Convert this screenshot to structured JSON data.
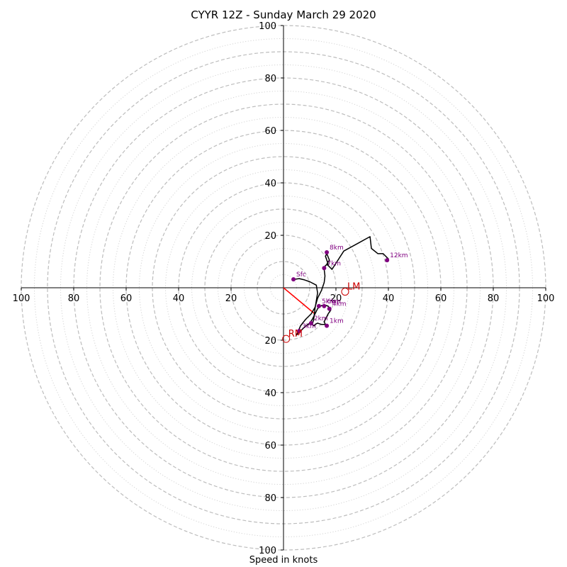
{
  "chart_data": {
    "type": "hodograph",
    "title": "CYYR 12Z - Sunday March 29 2020",
    "xlabel": "Speed in knots",
    "axis_range": [
      -100,
      100
    ],
    "rings_dashed": [
      10,
      20,
      30,
      40,
      50,
      60,
      70,
      80,
      90,
      100
    ],
    "rings_dotted": [
      5,
      15,
      25,
      35,
      45,
      55,
      65,
      75,
      85,
      95
    ],
    "x_ticks": [
      {
        "value": -100,
        "label": "100"
      },
      {
        "value": -80,
        "label": "80"
      },
      {
        "value": -60,
        "label": "60"
      },
      {
        "value": -40,
        "label": "40"
      },
      {
        "value": -20,
        "label": "20"
      },
      {
        "value": 20,
        "label": "20"
      },
      {
        "value": 40,
        "label": "40"
      },
      {
        "value": 60,
        "label": "60"
      },
      {
        "value": 80,
        "label": "80"
      },
      {
        "value": 100,
        "label": "100"
      }
    ],
    "y_ticks": [
      {
        "value": 100,
        "label": "100"
      },
      {
        "value": 80,
        "label": "80"
      },
      {
        "value": 60,
        "label": "60"
      },
      {
        "value": 40,
        "label": "40"
      },
      {
        "value": 20,
        "label": "20"
      },
      {
        "value": -20,
        "label": "20"
      },
      {
        "value": -40,
        "label": "40"
      },
      {
        "value": -60,
        "label": "60"
      },
      {
        "value": -80,
        "label": "80"
      },
      {
        "value": -100,
        "label": "100"
      }
    ],
    "trace_color": "#000000",
    "trace": [
      [
        3.8,
        3.2
      ],
      [
        6,
        3.5
      ],
      [
        8,
        3
      ],
      [
        10,
        2.3
      ],
      [
        12.5,
        1
      ],
      [
        13,
        -2
      ],
      [
        12,
        -8
      ],
      [
        11.5,
        -12
      ],
      [
        11,
        -14
      ],
      [
        11.5,
        -14.5
      ],
      [
        12,
        -14.5
      ],
      [
        12,
        -14
      ],
      [
        13,
        -13.5
      ],
      [
        14.5,
        -14
      ],
      [
        16,
        -14
      ],
      [
        17,
        -14.5
      ],
      [
        16,
        -14
      ],
      [
        15.5,
        -13
      ],
      [
        16,
        -12
      ],
      [
        17,
        -10
      ],
      [
        18,
        -8.5
      ],
      [
        17.5,
        -8
      ],
      [
        17,
        -7
      ],
      [
        15.5,
        -6.5
      ],
      [
        14,
        -7
      ],
      [
        13,
        -8
      ],
      [
        12,
        -10
      ],
      [
        11,
        -12
      ],
      [
        10,
        -13.5
      ],
      [
        8,
        -15
      ],
      [
        7,
        -16
      ],
      [
        6,
        -17
      ],
      [
        5,
        -18
      ],
      [
        6.5,
        -14.5
      ],
      [
        8.5,
        -12
      ],
      [
        10.5,
        -10
      ],
      [
        12,
        -7.5
      ],
      [
        13,
        -4
      ],
      [
        14.5,
        -1
      ],
      [
        15.5,
        2
      ],
      [
        15.8,
        4.5
      ],
      [
        15.5,
        7
      ],
      [
        16,
        8.5
      ],
      [
        17,
        9
      ],
      [
        16.5,
        10.5
      ],
      [
        16,
        12
      ],
      [
        16.5,
        13
      ],
      [
        17.5,
        10.5
      ],
      [
        16.5,
        9
      ],
      [
        18.5,
        7
      ],
      [
        23,
        14
      ],
      [
        33,
        19.5
      ],
      [
        33.5,
        15
      ],
      [
        36,
        13
      ],
      [
        38,
        13
      ],
      [
        40,
        11
      ],
      [
        39.5,
        10.5
      ]
    ],
    "height_markers_color": "#800080",
    "height_markers": [
      {
        "label": "Sfc",
        "x": 3.8,
        "y": 3.2
      },
      {
        "label": "1km",
        "x": 16.5,
        "y": -14.5
      },
      {
        "label": "2km",
        "x": 10.5,
        "y": -13.5
      },
      {
        "label": "3km",
        "x": 6,
        "y": -16.5
      },
      {
        "label": "4km",
        "x": 17.5,
        "y": -8
      },
      {
        "label": "5km",
        "x": 13.5,
        "y": -7
      },
      {
        "label": "6km",
        "x": 15.5,
        "y": -7
      },
      {
        "label": "7km",
        "x": 15.5,
        "y": 7.5
      },
      {
        "label": "8km",
        "x": 16.5,
        "y": 13.5
      },
      {
        "label": "12km",
        "x": 39.5,
        "y": 10.5
      }
    ],
    "storm_motion_color": "#cc0000",
    "storm_motion": [
      {
        "label": "LM",
        "x": 23.5,
        "y": -1.5
      },
      {
        "label": "RM",
        "x": 1,
        "y": -19.5
      }
    ],
    "shear_vector": {
      "color": "#ff0000",
      "from": [
        0,
        0
      ],
      "to": [
        12,
        -10
      ]
    }
  }
}
